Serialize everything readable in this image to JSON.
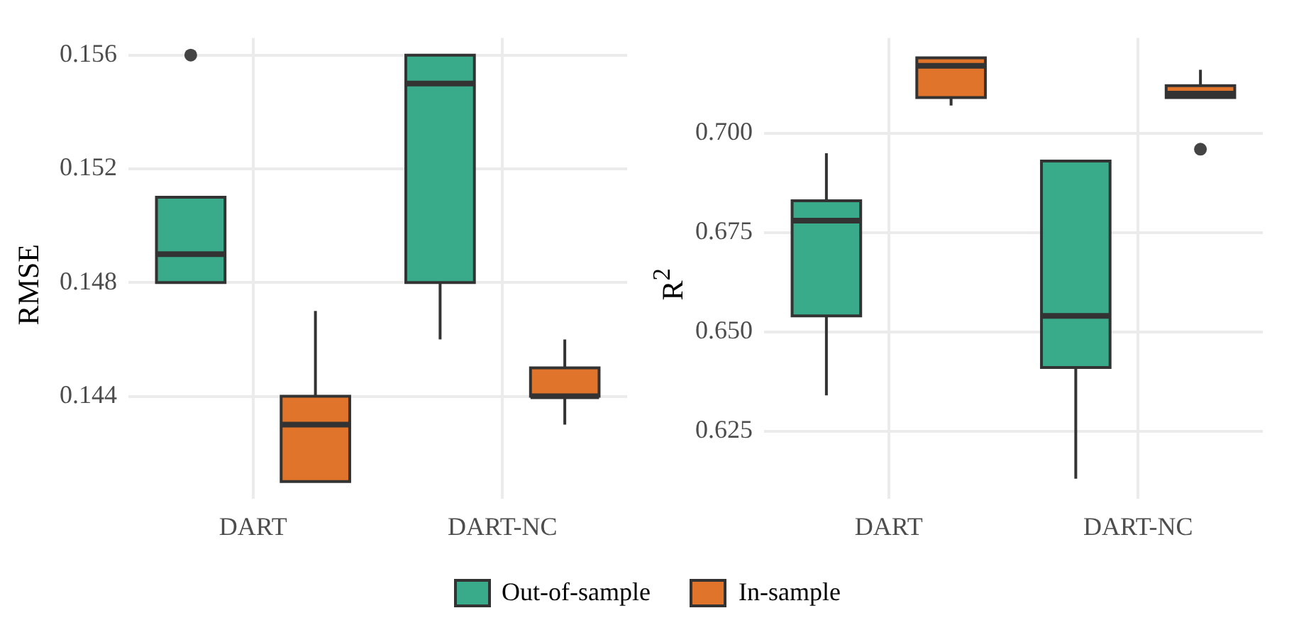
{
  "chart_data": [
    {
      "type": "box",
      "ylabel": "RMSE",
      "categories": [
        "DART",
        "DART-NC"
      ],
      "ylim": [
        0.1404,
        0.1566
      ],
      "yticks": [
        0.144,
        0.148,
        0.152,
        0.156
      ],
      "grid": true,
      "legend": "bottom",
      "series": [
        {
          "name": "Out-of-sample",
          "color": "#3aab8a",
          "boxes": [
            {
              "low": 0.148,
              "q1": 0.148,
              "median": 0.149,
              "q3": 0.151,
              "high": 0.151,
              "outliers": [
                0.156
              ]
            },
            {
              "low": 0.146,
              "q1": 0.148,
              "median": 0.155,
              "q3": 0.156,
              "high": 0.156
            }
          ]
        },
        {
          "name": "In-sample",
          "color": "#e0742a",
          "boxes": [
            {
              "low": 0.141,
              "q1": 0.141,
              "median": 0.143,
              "q3": 0.144,
              "high": 0.147
            },
            {
              "low": 0.143,
              "q1": 0.144,
              "median": 0.144,
              "q3": 0.145,
              "high": 0.146
            }
          ]
        }
      ]
    },
    {
      "type": "box",
      "ylabel": "R$^{2}$",
      "categories": [
        "DART",
        "DART-NC"
      ],
      "ylim": [
        0.608,
        0.724
      ],
      "yticks": [
        {
          "value": 0.625,
          "label": "0.625"
        },
        {
          "value": 0.65,
          "label": "0.650"
        },
        {
          "value": 0.675,
          "label": "0.675"
        },
        {
          "value": 0.7,
          "label": "0.700"
        }
      ],
      "grid": true,
      "series": [
        {
          "color": "#3aab8a",
          "boxes": [
            {
              "low": 0.634,
              "q1": 0.654,
              "median": 0.678,
              "q3": 0.683,
              "high": 0.695
            },
            {
              "low": 0.613,
              "q1": 0.641,
              "median": 0.654,
              "q3": 0.693,
              "high": 0.693
            }
          ]
        },
        {
          "color": "#e0742a",
          "boxes": [
            {
              "low": 0.707,
              "q1": 0.709,
              "median": 0.717,
              "q3": 0.719,
              "high": 0.719
            },
            {
              "low": 0.709,
              "q1": 0.709,
              "median": 0.71,
              "q3": 0.712,
              "high": 0.716,
              "outliers": [
                0.696
              ]
            }
          ]
        }
      ]
    }
  ]
}
